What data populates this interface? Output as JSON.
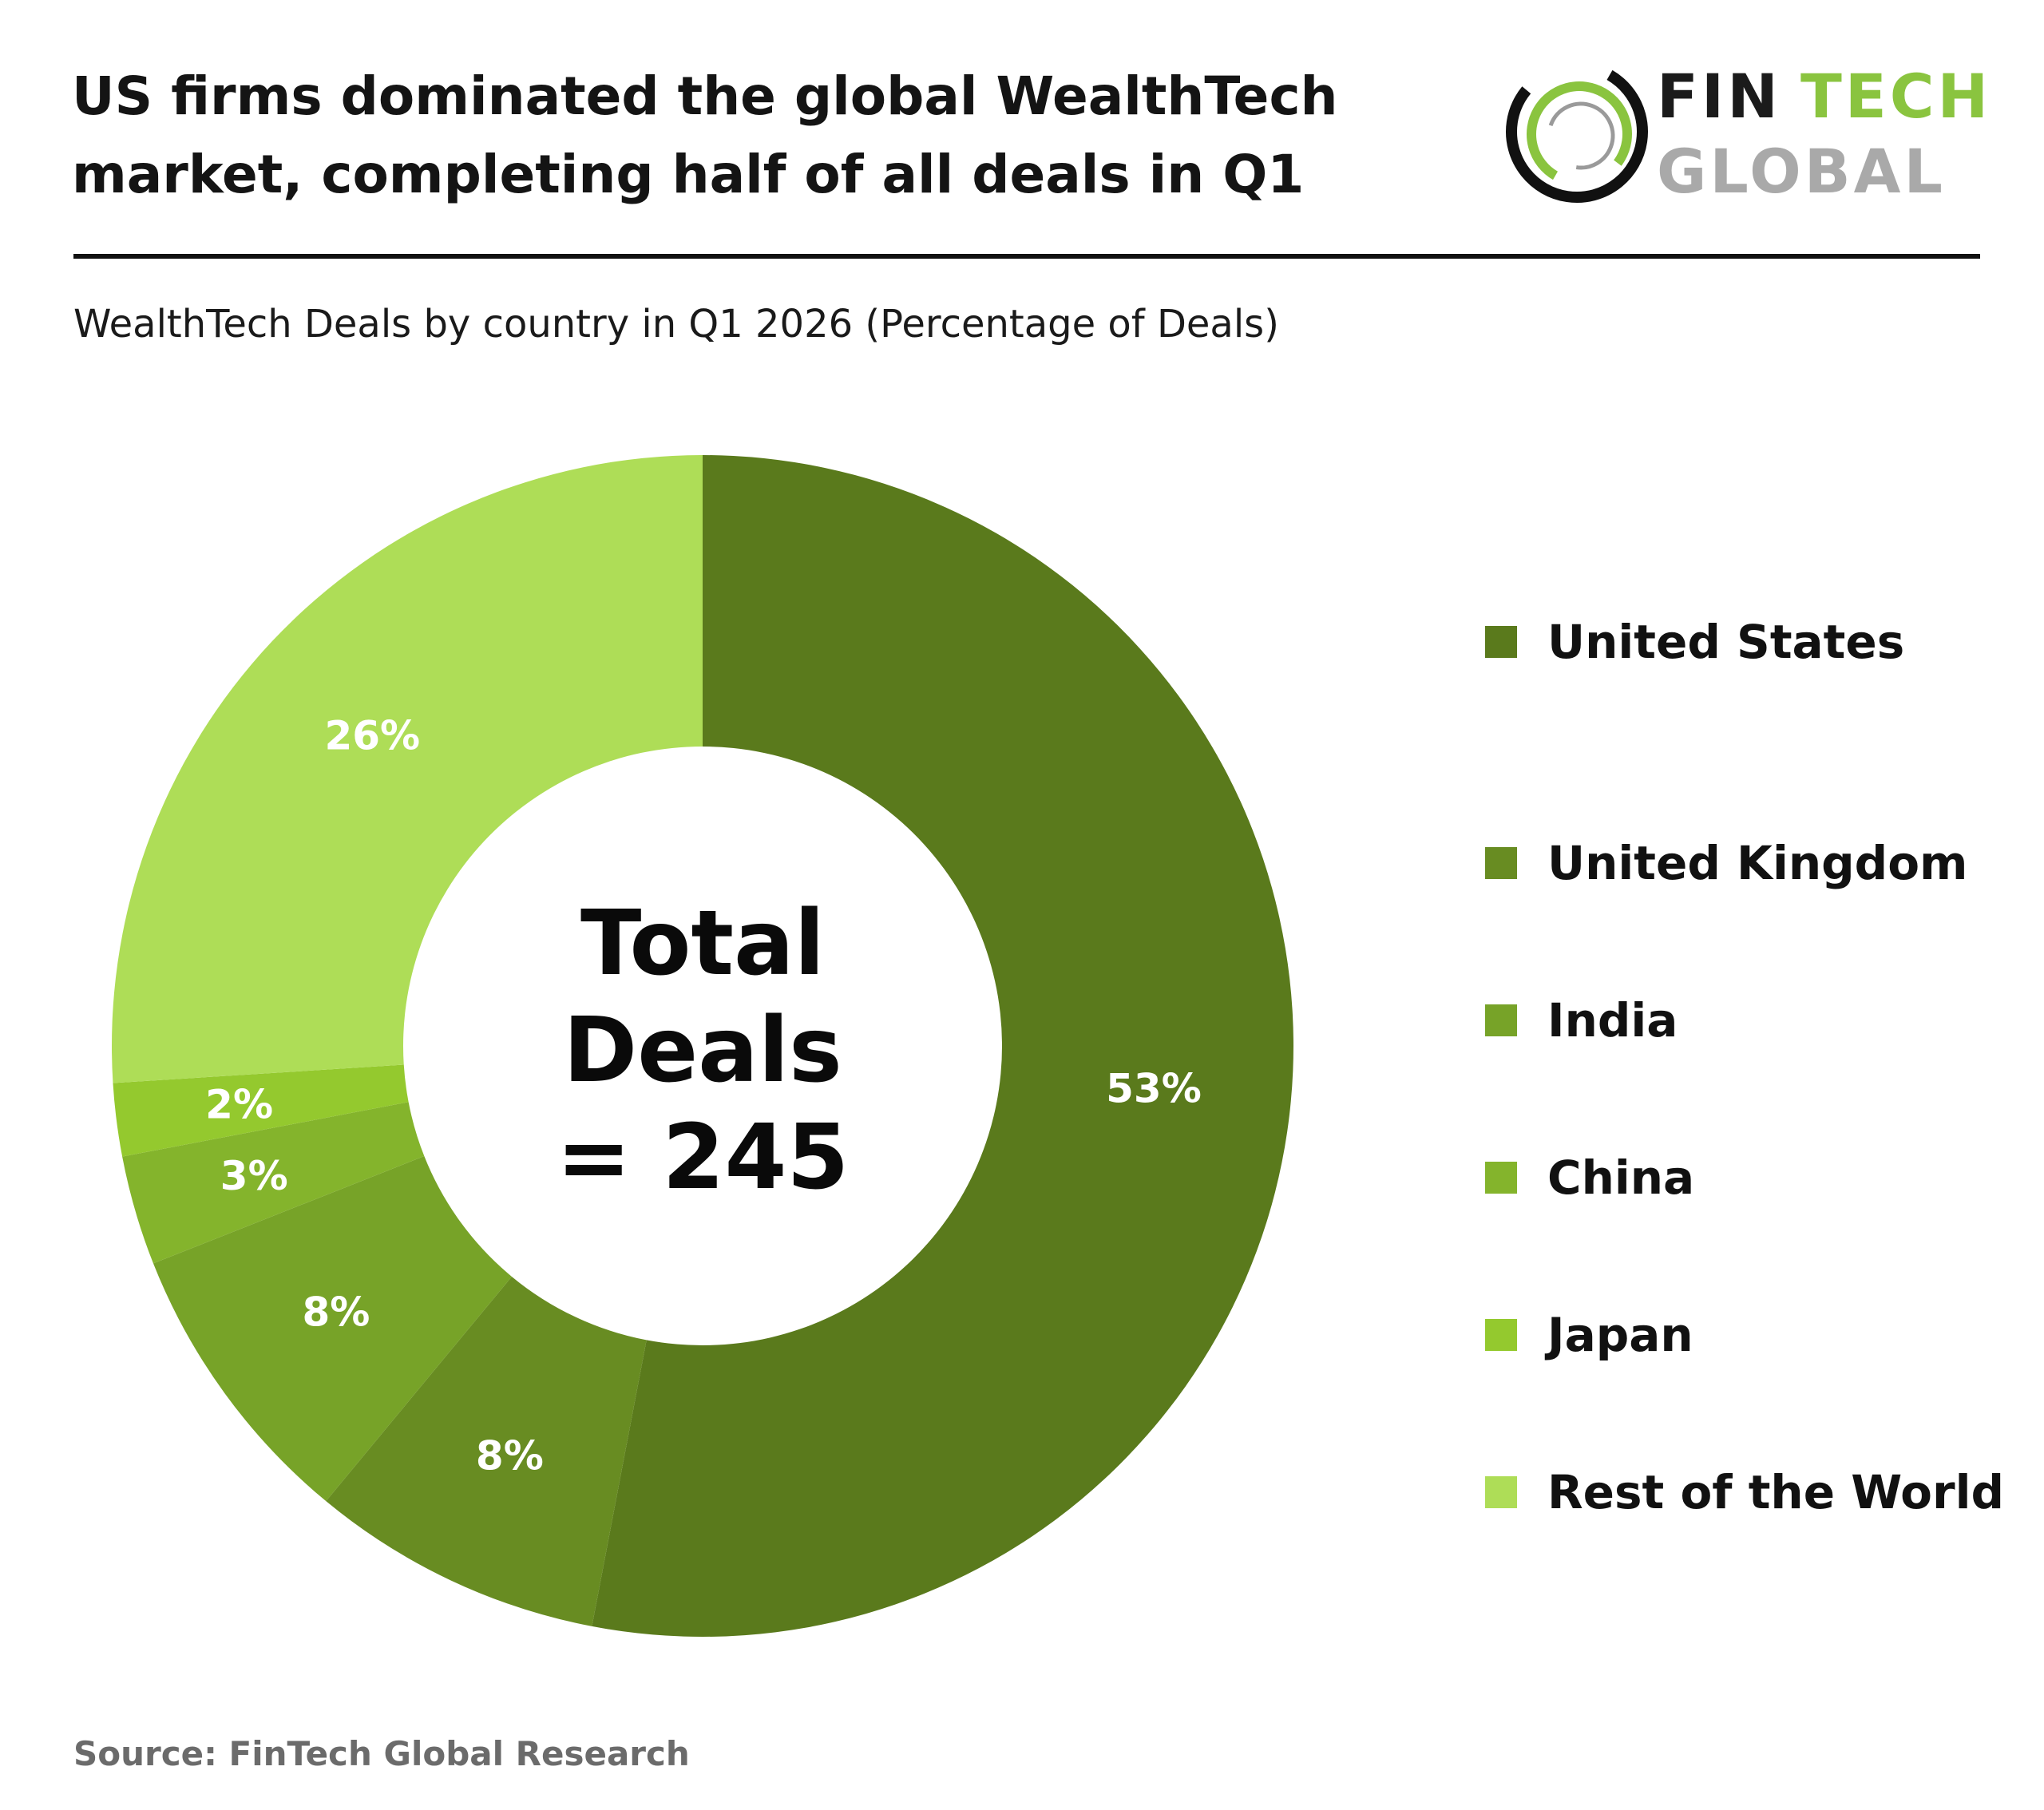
{
  "header": {
    "title_line1": "US firms dominated the global WealthTech",
    "title_line2": "market, completing half of all deals in Q1"
  },
  "logo": {
    "word1": "FIN",
    "word2": "TECH",
    "word3": "GLOBAL",
    "icon": "ring-logo-icon",
    "colors": {
      "dark": "#1b1b1b",
      "green": "#8ac43f",
      "grey": "#a9a9a9"
    }
  },
  "subtitle": "WealthTech Deals by country in Q1 2026 (Percentage of Deals)",
  "center": {
    "line1": "Total",
    "line2": "Deals",
    "line3": "= 245"
  },
  "source": "Source: FinTech Global Research",
  "chart_data": {
    "type": "pie",
    "donut": true,
    "total": 245,
    "categories": [
      "United States",
      "United Kingdom",
      "India",
      "China",
      "Japan",
      "Rest of the World"
    ],
    "values": [
      53,
      8,
      8,
      3,
      2,
      26
    ],
    "labels": [
      "53%",
      "8%",
      "8%",
      "3%",
      "2%",
      "26%"
    ],
    "colors": [
      "#5a7a1c",
      "#688c22",
      "#77a328",
      "#84b42c",
      "#94c92e",
      "#aedd57"
    ],
    "legend_position": "right",
    "start": "top, clockwise"
  }
}
